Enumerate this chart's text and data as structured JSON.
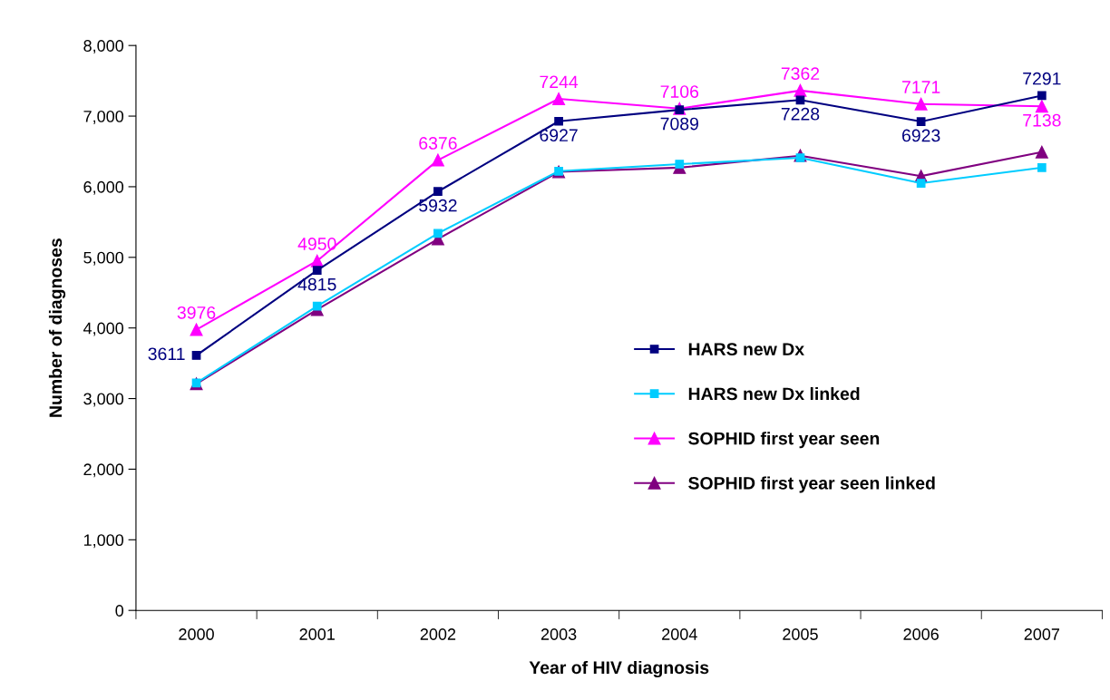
{
  "chart_data": {
    "type": "line",
    "xlabel": "Year of HIV diagnosis",
    "ylabel": "Number of diagnoses",
    "categories": [
      "2000",
      "2001",
      "2002",
      "2003",
      "2004",
      "2005",
      "2006",
      "2007"
    ],
    "series": [
      {
        "name": "HARS new Dx",
        "color": "#000080",
        "marker": "square",
        "values": [
          3611,
          4815,
          5932,
          6927,
          7089,
          7228,
          6923,
          7291
        ],
        "value_labels": [
          "3611",
          "4815",
          "5932",
          "6927",
          "7089",
          "7228",
          "6923",
          "7291"
        ]
      },
      {
        "name": "HARS new Dx linked",
        "color": "#00ccff",
        "marker": "square",
        "values": [
          3220,
          4310,
          5340,
          6220,
          6320,
          6410,
          6050,
          6270
        ]
      },
      {
        "name": "SOPHID first year seen",
        "color": "#ff00ff",
        "marker": "triangle",
        "values": [
          3976,
          4950,
          6376,
          7244,
          7106,
          7362,
          7171,
          7138
        ],
        "value_labels": [
          "3976",
          "4950",
          "6376",
          "7244",
          "7106",
          "7362",
          "7171",
          "7138"
        ]
      },
      {
        "name": "SOPHID first year seen linked",
        "color": "#800080",
        "marker": "triangle",
        "values": [
          3210,
          4260,
          5260,
          6210,
          6270,
          6440,
          6150,
          6490
        ]
      }
    ],
    "ylim": [
      0,
      8000
    ],
    "yticks": [
      {
        "value": 0,
        "label": "0"
      },
      {
        "value": 1000,
        "label": "1,000"
      },
      {
        "value": 2000,
        "label": "2,000"
      },
      {
        "value": 3000,
        "label": "3,000"
      },
      {
        "value": 4000,
        "label": "4,000"
      },
      {
        "value": 5000,
        "label": "5,000"
      },
      {
        "value": 6000,
        "label": "6,000"
      },
      {
        "value": 7000,
        "label": "7,000"
      },
      {
        "value": 8000,
        "label": "8,000"
      }
    ],
    "grid": false,
    "legend": "center right",
    "line_style": "solid"
  }
}
